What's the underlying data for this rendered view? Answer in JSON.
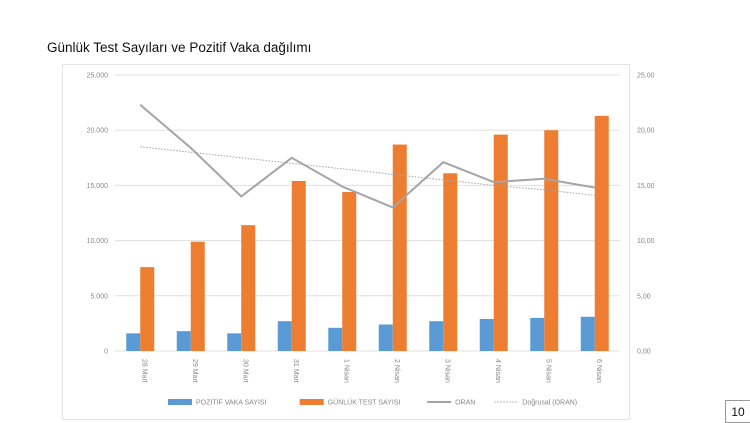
{
  "page": {
    "title": "Günlük Test Sayıları ve Pozitif Vaka dağılımı",
    "page_number": "10"
  },
  "chart_data": {
    "type": "bar",
    "title": "Günlük Test Sayıları ve Pozitif Vaka dağılımı",
    "categories": [
      "28 Mart",
      "29 Mart",
      "30 Mart",
      "31 Mart",
      "1 Nisan",
      "2 Nisan",
      "3 Nisan",
      "4 Nisan",
      "5 Nisan",
      "6 Nisan"
    ],
    "series": [
      {
        "name": "POZİTİF VAKA SAYISI",
        "type": "bar",
        "axis": "left",
        "color": "#5b9bd5",
        "values": [
          1600,
          1800,
          1600,
          2700,
          2100,
          2400,
          2700,
          2900,
          3000,
          3100
        ]
      },
      {
        "name": "GÜNLÜK TEST SAYISI",
        "type": "bar",
        "axis": "left",
        "color": "#ed7d31",
        "values": [
          7600,
          9900,
          11400,
          15400,
          14400,
          18700,
          16100,
          19600,
          20000,
          21300
        ]
      },
      {
        "name": "ORAN",
        "type": "line",
        "axis": "right",
        "color": "#a5a5a5",
        "values": [
          22.3,
          18.4,
          14.0,
          17.5,
          14.9,
          13.0,
          17.1,
          15.3,
          15.6,
          14.8
        ]
      },
      {
        "name": "Doğrusal (ORAN)",
        "type": "trendline",
        "axis": "right",
        "color": "#a5a5a5",
        "values": [
          18.5,
          18.0,
          17.5,
          17.0,
          16.5,
          16.0,
          15.5,
          15.0,
          14.6,
          14.1
        ]
      }
    ],
    "y_left": {
      "ylim": [
        0,
        25000
      ],
      "ticks": [
        "0",
        "5.000",
        "10.000",
        "15.000",
        "20.000",
        "25.000"
      ]
    },
    "y_right": {
      "ylim": [
        0,
        25
      ],
      "ticks": [
        "0,00",
        "5,00",
        "10,00",
        "15,00",
        "20,00",
        "25,00"
      ]
    },
    "grid": true,
    "legend": "bottom"
  }
}
